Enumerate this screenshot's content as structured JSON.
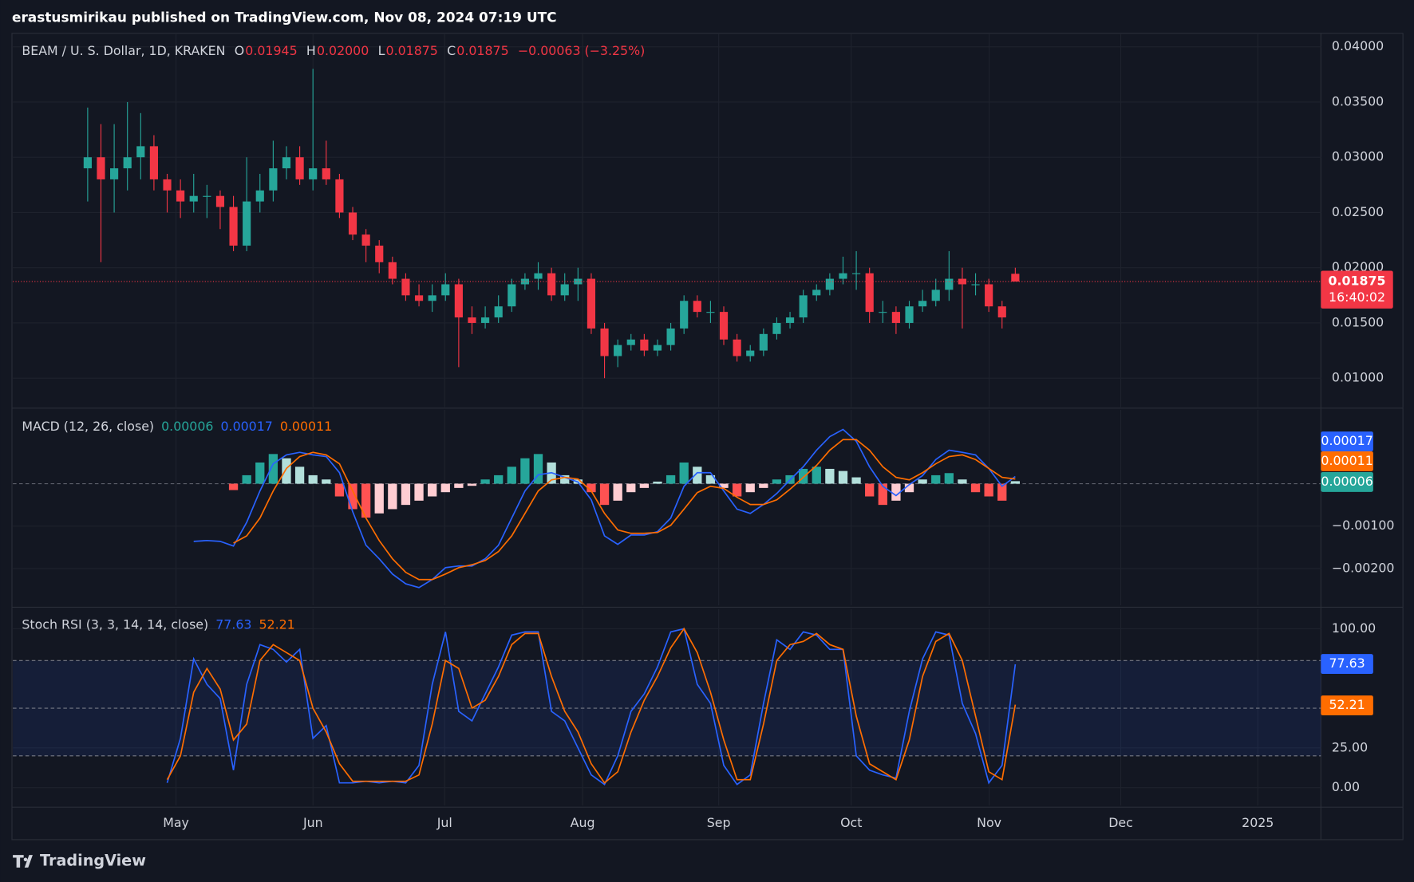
{
  "header": {
    "byline": "erastusmirikau published on TradingView.com, Nov 08, 2024 07:19 UTC"
  },
  "footer": {
    "brand": "TradingView"
  },
  "time_axis": {
    "labels": [
      "May",
      "Jun",
      "Jul",
      "Aug",
      "Sep",
      "Oct",
      "Nov",
      "Dec",
      "2025"
    ]
  },
  "chart_data": [
    {
      "type": "candlestick",
      "title": "BEAM / U. S. Dollar, 1D, KRAKEN",
      "legend_keys": [
        "O",
        "H",
        "L",
        "C"
      ],
      "legend_values": [
        "0.01945",
        "0.02000",
        "0.01875",
        "0.01875"
      ],
      "change": "−0.00063 (−3.25%)",
      "countdown": "16:40:02",
      "up_color": "#26a69a",
      "down_color": "#f23645",
      "grid": true,
      "ylim": [
        0.00737,
        0.04114
      ],
      "yticks": [
        {
          "value": 0.01,
          "label": "0.01000"
        },
        {
          "value": 0.015,
          "label": "0.01500"
        },
        {
          "value": 0.02,
          "label": "0.02000"
        },
        {
          "value": 0.025,
          "label": "0.02500"
        },
        {
          "value": 0.03,
          "label": "0.03000"
        },
        {
          "value": 0.035,
          "label": "0.03500"
        },
        {
          "value": 0.04,
          "label": "0.04000"
        }
      ],
      "candles": [
        [
          0.029,
          0.0345,
          0.026,
          0.03
        ],
        [
          0.03,
          0.033,
          0.0205,
          0.028
        ],
        [
          0.028,
          0.033,
          0.025,
          0.029
        ],
        [
          0.029,
          0.035,
          0.027,
          0.03
        ],
        [
          0.03,
          0.034,
          0.028,
          0.031
        ],
        [
          0.031,
          0.032,
          0.027,
          0.028
        ],
        [
          0.028,
          0.0285,
          0.025,
          0.027
        ],
        [
          0.027,
          0.028,
          0.0245,
          0.026
        ],
        [
          0.026,
          0.0285,
          0.025,
          0.0265
        ],
        [
          0.0265,
          0.0275,
          0.0245,
          0.0265
        ],
        [
          0.0265,
          0.027,
          0.0235,
          0.0255
        ],
        [
          0.0255,
          0.0265,
          0.0215,
          0.022
        ],
        [
          0.022,
          0.03,
          0.0215,
          0.026
        ],
        [
          0.026,
          0.0285,
          0.025,
          0.027
        ],
        [
          0.027,
          0.0315,
          0.026,
          0.029
        ],
        [
          0.029,
          0.031,
          0.028,
          0.03
        ],
        [
          0.03,
          0.031,
          0.0275,
          0.028
        ],
        [
          0.028,
          0.038,
          0.027,
          0.029
        ],
        [
          0.029,
          0.0315,
          0.0275,
          0.028
        ],
        [
          0.028,
          0.0285,
          0.0245,
          0.025
        ],
        [
          0.025,
          0.0255,
          0.0225,
          0.023
        ],
        [
          0.023,
          0.0235,
          0.0205,
          0.022
        ],
        [
          0.022,
          0.0225,
          0.0195,
          0.0205
        ],
        [
          0.0205,
          0.021,
          0.0185,
          0.019
        ],
        [
          0.019,
          0.0195,
          0.017,
          0.0175
        ],
        [
          0.0175,
          0.0185,
          0.0165,
          0.017
        ],
        [
          0.017,
          0.0185,
          0.016,
          0.0175
        ],
        [
          0.0175,
          0.0195,
          0.017,
          0.0185
        ],
        [
          0.0185,
          0.019,
          0.011,
          0.0155
        ],
        [
          0.0155,
          0.0165,
          0.014,
          0.015
        ],
        [
          0.015,
          0.0165,
          0.0145,
          0.0155
        ],
        [
          0.0155,
          0.0175,
          0.015,
          0.0165
        ],
        [
          0.0165,
          0.019,
          0.016,
          0.0185
        ],
        [
          0.0185,
          0.0195,
          0.018,
          0.019
        ],
        [
          0.019,
          0.0205,
          0.018,
          0.0195
        ],
        [
          0.0195,
          0.02,
          0.017,
          0.0175
        ],
        [
          0.0175,
          0.0195,
          0.017,
          0.0185
        ],
        [
          0.0185,
          0.02,
          0.017,
          0.019
        ],
        [
          0.019,
          0.0195,
          0.014,
          0.0145
        ],
        [
          0.0145,
          0.015,
          0.01,
          0.012
        ],
        [
          0.012,
          0.0135,
          0.011,
          0.013
        ],
        [
          0.013,
          0.014,
          0.0125,
          0.0135
        ],
        [
          0.0135,
          0.014,
          0.012,
          0.0125
        ],
        [
          0.0125,
          0.0135,
          0.012,
          0.013
        ],
        [
          0.013,
          0.015,
          0.0125,
          0.0145
        ],
        [
          0.0145,
          0.0175,
          0.014,
          0.017
        ],
        [
          0.017,
          0.0175,
          0.0155,
          0.016
        ],
        [
          0.016,
          0.017,
          0.015,
          0.016
        ],
        [
          0.016,
          0.0165,
          0.013,
          0.0135
        ],
        [
          0.0135,
          0.014,
          0.0115,
          0.012
        ],
        [
          0.012,
          0.013,
          0.0115,
          0.0125
        ],
        [
          0.0125,
          0.0145,
          0.012,
          0.014
        ],
        [
          0.014,
          0.0155,
          0.0135,
          0.015
        ],
        [
          0.015,
          0.016,
          0.0145,
          0.0155
        ],
        [
          0.0155,
          0.018,
          0.015,
          0.0175
        ],
        [
          0.0175,
          0.0185,
          0.017,
          0.018
        ],
        [
          0.018,
          0.0195,
          0.0175,
          0.019
        ],
        [
          0.019,
          0.021,
          0.0185,
          0.0195
        ],
        [
          0.0195,
          0.0215,
          0.018,
          0.0195
        ],
        [
          0.0195,
          0.02,
          0.015,
          0.016
        ],
        [
          0.016,
          0.017,
          0.015,
          0.016
        ],
        [
          0.016,
          0.0165,
          0.014,
          0.015
        ],
        [
          0.015,
          0.017,
          0.0145,
          0.0165
        ],
        [
          0.0165,
          0.018,
          0.016,
          0.017
        ],
        [
          0.017,
          0.019,
          0.0165,
          0.018
        ],
        [
          0.018,
          0.0215,
          0.017,
          0.019
        ],
        [
          0.019,
          0.02,
          0.0145,
          0.0185
        ],
        [
          0.0185,
          0.0195,
          0.0175,
          0.0185
        ],
        [
          0.0185,
          0.019,
          0.016,
          0.0165
        ],
        [
          0.0165,
          0.017,
          0.0145,
          0.0155
        ],
        [
          0.01945,
          0.02,
          0.01875,
          0.01875
        ]
      ]
    },
    {
      "type": "macd",
      "title": "MACD (12, 26, close)",
      "ylim": [
        -0.00287,
        0.00174
      ],
      "baseline": 0,
      "grid": true,
      "yticks": [
        {
          "value": -0.002,
          "label": "−0.00200"
        },
        {
          "value": -0.001,
          "label": "−0.00100"
        }
      ],
      "series": [
        {
          "name": "Histogram",
          "color": "#26a69a",
          "values": [
            null,
            null,
            null,
            null,
            null,
            null,
            null,
            null,
            null,
            null,
            null,
            -0.00015,
            0.0002,
            0.0005,
            0.0007,
            0.0006,
            0.0004,
            0.0002,
            0.0001,
            -0.0003,
            -0.0006,
            -0.0008,
            -0.0007,
            -0.0006,
            -0.0005,
            -0.0004,
            -0.0003,
            -0.0002,
            -0.0001,
            -5e-05,
            0.0001,
            0.0002,
            0.0004,
            0.0006,
            0.0007,
            0.0005,
            0.0002,
            0.0001,
            -0.0002,
            -0.0005,
            -0.0004,
            -0.0002,
            -0.0001,
            5e-05,
            0.0002,
            0.0005,
            0.0004,
            0.0002,
            -0.0001,
            -0.0003,
            -0.0002,
            -0.0001,
            0.0001,
            0.0002,
            0.00035,
            0.0004,
            0.00035,
            0.0003,
            0.00015,
            -0.0003,
            -0.0005,
            -0.0004,
            -0.0002,
            0.0001,
            0.0002,
            0.00025,
            0.0001,
            -0.0002,
            -0.0003,
            -0.0004,
            6e-05
          ]
        },
        {
          "name": "MACD",
          "color": "#2962ff",
          "values": [
            null,
            null,
            null,
            null,
            null,
            null,
            null,
            null,
            -0.00136,
            -0.00134,
            -0.00136,
            -0.00147,
            -0.00091,
            -0.00017,
            0.00047,
            0.00068,
            0.00074,
            0.00068,
            0.00064,
            0.00026,
            -0.00066,
            -0.00145,
            -0.00177,
            -0.00213,
            -0.00236,
            -0.00245,
            -0.00226,
            -0.00198,
            -0.00194,
            -0.00194,
            -0.00177,
            -0.00145,
            -0.00081,
            -0.00017,
            0.00021,
            0.00026,
            0.00015,
            4e-05,
            -0.00038,
            -0.00123,
            -0.00143,
            -0.00121,
            -0.00121,
            -0.00113,
            -0.00081,
            -6e-05,
            0.00026,
            0.00026,
            -0.00017,
            -0.0006,
            -0.0007,
            -0.00049,
            -0.00023,
            9e-05,
            0.0004,
            0.00079,
            0.00111,
            0.00128,
            0.001,
            0.0004,
            -6e-05,
            -0.00028,
            -2e-05,
            0.00019,
            0.00057,
            0.00079,
            0.00074,
            0.00068,
            0.00036,
            -6e-05,
            0.00017
          ]
        },
        {
          "name": "Signal",
          "color": "#ff6d00",
          "values": [
            null,
            null,
            null,
            null,
            null,
            null,
            null,
            null,
            null,
            null,
            null,
            -0.0014,
            -0.00123,
            -0.00081,
            -0.00017,
            0.00036,
            0.00064,
            0.00074,
            0.00068,
            0.00047,
            -0.00017,
            -0.00081,
            -0.00134,
            -0.00177,
            -0.00209,
            -0.00226,
            -0.00226,
            -0.00213,
            -0.00198,
            -0.00191,
            -0.00181,
            -0.0016,
            -0.00123,
            -0.0007,
            -0.00017,
            9e-05,
            0.00015,
            0.00011,
            -0.00017,
            -0.0007,
            -0.00109,
            -0.00117,
            -0.00117,
            -0.00115,
            -0.00098,
            -0.0006,
            -0.00021,
            -6e-05,
            -0.00011,
            -0.00032,
            -0.00049,
            -0.00049,
            -0.00038,
            -0.00013,
            0.00015,
            0.00043,
            0.00079,
            0.00104,
            0.00104,
            0.00079,
            0.0004,
            0.00015,
            9e-05,
            0.00026,
            0.00047,
            0.00064,
            0.00068,
            0.00057,
            0.00036,
            0.00015,
            0.00011
          ]
        }
      ]
    },
    {
      "type": "stoch",
      "title": "Stoch RSI (3, 3, 14, 14, close)",
      "ylim": [
        -11.2,
        112.4
      ],
      "bands": [
        80,
        50,
        20
      ],
      "band_color": "#2962ff",
      "grid": true,
      "yticks": [
        {
          "value": 0,
          "label": "0.00"
        },
        {
          "value": 25,
          "label": "25.00"
        },
        {
          "value": 100,
          "label": "100.00"
        }
      ],
      "series": [
        {
          "name": "K",
          "color": "#2962ff",
          "values": [
            null,
            null,
            null,
            null,
            null,
            null,
            3,
            31,
            81,
            65,
            56,
            11,
            65,
            90,
            87,
            79,
            87,
            31,
            39,
            3,
            3,
            4,
            3,
            4,
            3,
            14,
            65,
            98,
            48,
            42,
            59,
            76,
            96,
            98,
            98,
            48,
            42,
            25,
            8,
            2,
            20,
            48,
            59,
            76,
            98,
            100,
            65,
            53,
            14,
            2,
            8,
            53,
            93,
            87,
            98,
            96,
            87,
            87,
            20,
            11,
            8,
            6,
            48,
            81,
            98,
            96,
            53,
            34,
            3,
            14,
            77.63
          ]
        },
        {
          "name": "D",
          "color": "#ff6d00",
          "values": [
            null,
            null,
            null,
            null,
            null,
            null,
            5,
            20,
            60,
            75,
            62,
            30,
            40,
            80,
            90,
            85,
            80,
            50,
            35,
            15,
            4,
            4,
            4,
            4,
            4,
            8,
            40,
            80,
            75,
            50,
            55,
            70,
            90,
            97,
            97,
            70,
            48,
            35,
            15,
            3,
            10,
            35,
            55,
            70,
            88,
            100,
            85,
            60,
            30,
            5,
            5,
            40,
            80,
            90,
            92,
            97,
            90,
            87,
            45,
            15,
            10,
            5,
            30,
            70,
            92,
            97,
            80,
            45,
            10,
            5,
            52.21
          ]
        }
      ]
    }
  ]
}
